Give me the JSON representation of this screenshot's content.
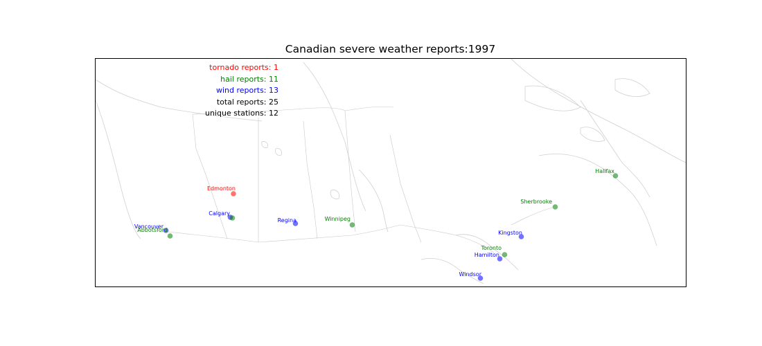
{
  "title": "Canadian severe weather reports:1997",
  "stats": {
    "tornado": "tornado reports: 1",
    "hail": "hail reports: 11",
    "wind": "wind reports: 13",
    "total": "total reports: 25",
    "stations": "unique stations: 12"
  },
  "colors": {
    "tornado": "#ff0000",
    "hail": "#008000",
    "wind": "#0000ff",
    "total": "#000000",
    "coast": "#d0d0d0",
    "border": "#c8c8c8"
  },
  "reports": [
    {
      "station": "Edmonton",
      "type": "tornado"
    },
    {
      "station": "Calgary",
      "type": "wind"
    },
    {
      "station": "Calgary",
      "type": "hail"
    },
    {
      "station": "Regina",
      "type": "wind"
    },
    {
      "station": "Winnipeg",
      "type": "hail"
    },
    {
      "station": "Vancouver",
      "type": "wind"
    },
    {
      "station": "Abbotsford",
      "type": "hail"
    },
    {
      "station": "Sherbrooke",
      "type": "hail"
    },
    {
      "station": "Halifax",
      "type": "hail"
    },
    {
      "station": "Kingston",
      "type": "wind"
    },
    {
      "station": "Toronto",
      "type": "hail"
    },
    {
      "station": "Hamilton",
      "type": "wind"
    },
    {
      "station": "Windsor",
      "type": "wind"
    }
  ]
}
